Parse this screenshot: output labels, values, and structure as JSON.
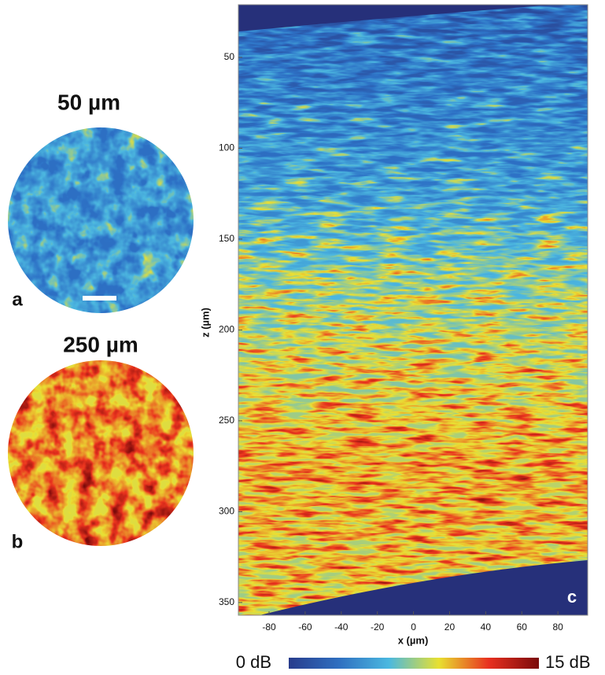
{
  "chart_data": [
    {
      "type": "image",
      "title": "50 µm",
      "label": "a"
    },
    {
      "type": "image",
      "title": "250 µm",
      "label": "b"
    },
    {
      "type": "heatmap",
      "label": "c",
      "xlabel": "x (µm)",
      "ylabel": "z (µm)",
      "xlim": [
        -97,
        96.5
      ],
      "xticks": [
        -80,
        -60,
        -40,
        -20,
        0,
        20,
        40,
        60,
        80
      ],
      "ylim": [
        21,
        357
      ],
      "yticks": [
        50,
        100,
        150,
        200,
        250,
        300,
        350
      ],
      "clim": [
        0,
        15
      ],
      "cticks": [
        {
          "value": 0,
          "label": "0 dB"
        },
        {
          "value": 15,
          "label": "15 dB"
        }
      ],
      "colormap": "jet"
    }
  ]
}
